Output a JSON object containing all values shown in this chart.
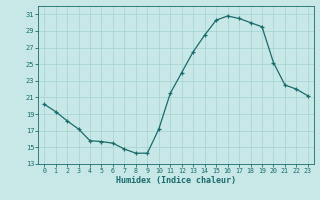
{
  "x": [
    0,
    1,
    2,
    3,
    4,
    5,
    6,
    7,
    8,
    9,
    10,
    11,
    12,
    13,
    14,
    15,
    16,
    17,
    18,
    19,
    20,
    21,
    22,
    23
  ],
  "y": [
    20.2,
    19.3,
    18.2,
    17.2,
    15.8,
    15.7,
    15.5,
    14.8,
    14.3,
    14.3,
    17.2,
    21.5,
    24.0,
    26.5,
    28.5,
    30.3,
    30.8,
    30.5,
    30.0,
    29.5,
    25.2,
    22.5,
    22.0,
    21.2
  ],
  "xlabel": "Humidex (Indice chaleur)",
  "xlim": [
    -0.5,
    23.5
  ],
  "ylim": [
    13,
    32
  ],
  "yticks": [
    13,
    15,
    17,
    19,
    21,
    23,
    25,
    27,
    29,
    31
  ],
  "xticks": [
    0,
    1,
    2,
    3,
    4,
    5,
    6,
    7,
    8,
    9,
    10,
    11,
    12,
    13,
    14,
    15,
    16,
    17,
    18,
    19,
    20,
    21,
    22,
    23
  ],
  "line_color": "#1a6b6b",
  "marker": "+",
  "bg_color": "#c8e8e8",
  "grid_color": "#aad4d4",
  "font_color": "#1a6b6b",
  "spine_color": "#1a6b6b"
}
